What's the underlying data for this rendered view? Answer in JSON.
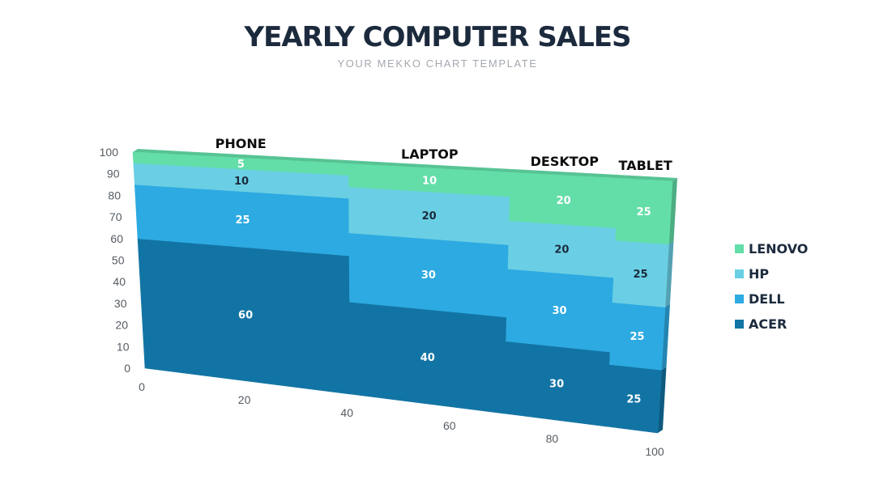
{
  "header": {
    "title": "YEARLY COMPUTER SALES",
    "subtitle": "YOUR MEKKO CHART TEMPLATE"
  },
  "chart_data": {
    "type": "mekko",
    "style": "3d-perspective",
    "x_ticks": [
      "0",
      "20",
      "40",
      "60",
      "80",
      "100"
    ],
    "y_ticks": [
      "0",
      "10",
      "20",
      "30",
      "40",
      "50",
      "60",
      "70",
      "80",
      "90",
      "100"
    ],
    "xlim": [
      0,
      100
    ],
    "ylim": [
      0,
      100
    ],
    "categories": [
      "PHONE",
      "LAPTOP",
      "DESKTOP",
      "TABLET"
    ],
    "category_widths": [
      40,
      30,
      20,
      10
    ],
    "series": [
      {
        "name": "ACER",
        "color": "#1274a4",
        "values": [
          60,
          40,
          30,
          25
        ]
      },
      {
        "name": "DELL",
        "color": "#2daae1",
        "values": [
          25,
          30,
          30,
          25
        ]
      },
      {
        "name": "HP",
        "color": "#6acfe4",
        "values": [
          10,
          20,
          20,
          25
        ]
      },
      {
        "name": "LENOVO",
        "color": "#63dea8",
        "values": [
          5,
          10,
          20,
          25
        ]
      }
    ],
    "label_colors": {
      "ACER": "#ffffff",
      "DELL": "#ffffff",
      "HP": "#1c2a3d",
      "LENOVO": "#ffffff"
    },
    "legend_position": "right",
    "grid": false
  }
}
